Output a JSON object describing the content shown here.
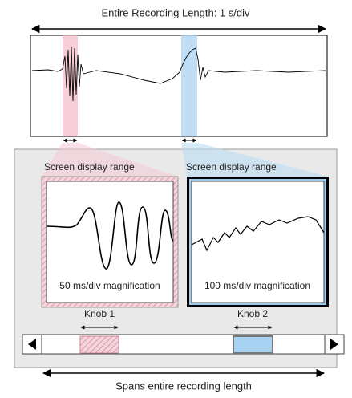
{
  "header": {
    "title": "Entire Recording Length: 1 s/div"
  },
  "panels": [
    {
      "label": "Screen display range",
      "caption": "50 ms/div magnification",
      "knob": "Knob 1"
    },
    {
      "label": "Screen display range",
      "caption": "100 ms/div magnification",
      "knob": "Knob 2"
    }
  ],
  "footer": {
    "caption": "Spans entire recording length"
  }
}
